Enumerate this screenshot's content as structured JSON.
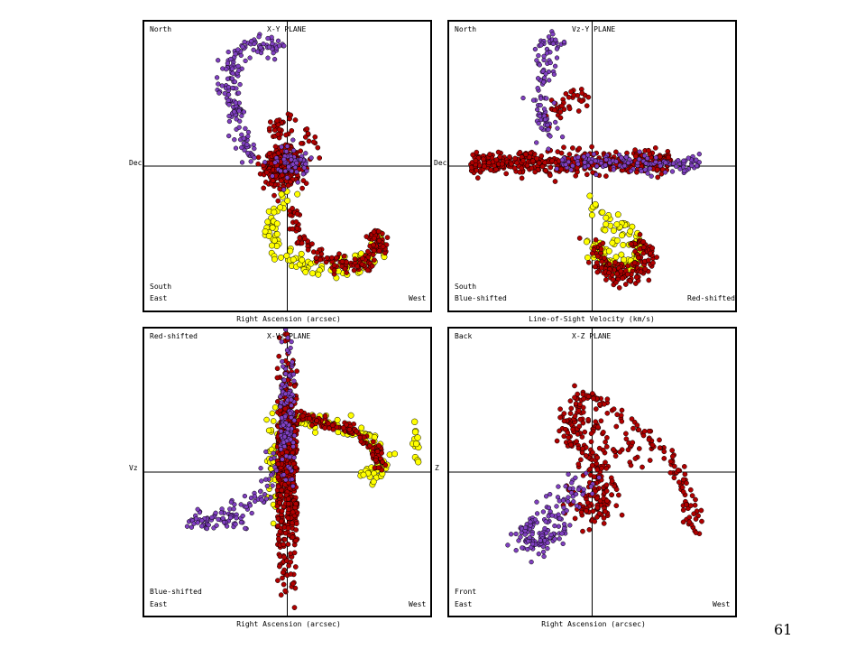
{
  "page_number": "61",
  "colors": {
    "red": "#b00000",
    "purple": "#8040c0",
    "yellow": "#ffff00",
    "outline": "#000000"
  },
  "chart_data": [
    {
      "type": "scatter",
      "title": "X-Y PLANE",
      "xlabel": "Right Ascension (arcsec)",
      "ylabel": "Dec",
      "corner_labels": {
        "top_left": "North",
        "bottom_left_1": "South",
        "bottom_left_2": "East",
        "bottom_right": "West"
      },
      "grid": "axes crosshair only",
      "xlim": [
        -1,
        1
      ],
      "ylim": [
        -1,
        1
      ],
      "series": [
        {
          "color": "yellow",
          "shape": "arm",
          "points": [
            [
              0.0,
              -0.17
            ],
            [
              -0.1,
              -0.3
            ],
            [
              -0.12,
              -0.45
            ],
            [
              -0.05,
              -0.6
            ],
            [
              0.1,
              -0.68
            ],
            [
              0.3,
              -0.72
            ],
            [
              0.5,
              -0.68
            ],
            [
              0.62,
              -0.6
            ],
            [
              0.66,
              -0.5
            ]
          ],
          "spread": 0.035,
          "count": 120,
          "size": 3.2
        },
        {
          "color": "red",
          "shape": "blob",
          "center": [
            -0.03,
            0.0
          ],
          "radius": [
            0.1,
            0.1
          ],
          "count": 420,
          "size": 2.6
        },
        {
          "color": "red",
          "shape": "arm",
          "points": [
            [
              0.02,
              -0.3
            ],
            [
              0.1,
              -0.52
            ],
            [
              0.28,
              -0.65
            ],
            [
              0.5,
              -0.7
            ],
            [
              0.64,
              -0.58
            ],
            [
              0.6,
              -0.45
            ]
          ],
          "spread": 0.03,
          "count": 160,
          "size": 2.6
        },
        {
          "color": "red",
          "shape": "arm",
          "points": [
            [
              -0.12,
              0.15
            ],
            [
              -0.05,
              0.3
            ],
            [
              0.08,
              0.28
            ],
            [
              0.16,
              0.1
            ]
          ],
          "spread": 0.04,
          "count": 40,
          "size": 2.6
        },
        {
          "color": "purple",
          "shape": "arm",
          "points": [
            [
              -0.25,
              0.05
            ],
            [
              -0.35,
              0.3
            ],
            [
              -0.42,
              0.55
            ],
            [
              -0.38,
              0.75
            ],
            [
              -0.22,
              0.85
            ],
            [
              -0.05,
              0.83
            ]
          ],
          "spread": 0.04,
          "count": 170,
          "size": 2.4
        },
        {
          "color": "purple",
          "shape": "blob",
          "center": [
            0.03,
            0.04
          ],
          "radius": [
            0.11,
            0.09
          ],
          "count": 60,
          "size": 2.4
        }
      ]
    },
    {
      "type": "scatter",
      "title": "Vz-Y PLANE",
      "xlabel": "Line-of-Sight Velocity (km/s)",
      "ylabel": "Dec",
      "corner_labels": {
        "top_left": "North",
        "bottom_left_1": "South",
        "bottom_left_2": "Blue-shifted",
        "bottom_right": "Red-shifted"
      },
      "grid": "axes crosshair only",
      "xlim": [
        -1,
        1
      ],
      "ylim": [
        -1,
        1
      ],
      "series": [
        {
          "color": "yellow",
          "shape": "arm",
          "points": [
            [
              0.0,
              -0.2
            ],
            [
              0.1,
              -0.38
            ],
            [
              0.2,
              -0.45
            ],
            [
              0.3,
              -0.5
            ],
            [
              0.32,
              -0.62
            ],
            [
              0.22,
              -0.7
            ],
            [
              0.1,
              -0.65
            ],
            [
              0.0,
              -0.55
            ]
          ],
          "spread": 0.035,
          "count": 110,
          "size": 3.2
        },
        {
          "color": "red",
          "shape": "band",
          "center": [
            -0.15,
            0.02
          ],
          "radius": [
            0.7,
            0.07
          ],
          "count": 430,
          "size": 2.6
        },
        {
          "color": "red",
          "shape": "arm",
          "points": [
            [
              0.0,
              -0.55
            ],
            [
              0.1,
              -0.7
            ],
            [
              0.22,
              -0.78
            ],
            [
              0.35,
              -0.72
            ],
            [
              0.38,
              -0.6
            ],
            [
              0.3,
              -0.5
            ]
          ],
          "spread": 0.035,
          "count": 150,
          "size": 2.6
        },
        {
          "color": "red",
          "shape": "arm",
          "points": [
            [
              -0.28,
              0.35
            ],
            [
              -0.18,
              0.45
            ],
            [
              -0.05,
              0.5
            ]
          ],
          "spread": 0.04,
          "count": 35,
          "size": 2.6
        },
        {
          "color": "purple",
          "shape": "arm",
          "points": [
            [
              -0.3,
              0.15
            ],
            [
              -0.35,
              0.4
            ],
            [
              -0.32,
              0.65
            ],
            [
              -0.3,
              0.85
            ],
            [
              -0.25,
              0.9
            ]
          ],
          "spread": 0.04,
          "count": 100,
          "size": 2.4
        },
        {
          "color": "purple",
          "shape": "band",
          "center": [
            0.25,
            0.02
          ],
          "radius": [
            0.5,
            0.05
          ],
          "count": 130,
          "size": 2.4
        }
      ]
    },
    {
      "type": "scatter",
      "title": "X-Vz PLANE",
      "xlabel": "Right Ascension (arcsec)",
      "ylabel": "Vz",
      "corner_labels": {
        "top_left": "Red-shifted",
        "bottom_left_1": "Blue-shifted",
        "bottom_left_2": "East",
        "bottom_right": "West"
      },
      "grid": "axes crosshair only",
      "xlim": [
        -1,
        1
      ],
      "ylim": [
        -1,
        1
      ],
      "series": [
        {
          "color": "yellow",
          "shape": "arm",
          "points": [
            [
              0.05,
              0.38
            ],
            [
              0.25,
              0.35
            ],
            [
              0.45,
              0.3
            ],
            [
              0.6,
              0.2
            ],
            [
              0.68,
              0.05
            ],
            [
              0.62,
              -0.02
            ],
            [
              0.55,
              0.0
            ]
          ],
          "spread": 0.03,
          "count": 110,
          "size": 3.2
        },
        {
          "color": "yellow",
          "shape": "blob",
          "center": [
            0.9,
            0.2
          ],
          "radius": [
            0.02,
            0.1
          ],
          "count": 14,
          "size": 3.4
        },
        {
          "color": "yellow",
          "shape": "blob",
          "center": [
            -0.1,
            0.15
          ],
          "radius": [
            0.04,
            0.3
          ],
          "count": 40,
          "size": 3.0
        },
        {
          "color": "red",
          "shape": "band",
          "center": [
            0.0,
            0.0
          ],
          "radius": [
            0.07,
            0.65
          ],
          "count": 520,
          "size": 2.6
        },
        {
          "color": "red",
          "shape": "arm",
          "points": [
            [
              0.05,
              0.38
            ],
            [
              0.25,
              0.35
            ],
            [
              0.45,
              0.3
            ],
            [
              0.6,
              0.18
            ],
            [
              0.66,
              0.05
            ]
          ],
          "spread": 0.025,
          "count": 120,
          "size": 2.6
        },
        {
          "color": "purple",
          "shape": "arm",
          "points": [
            [
              -0.05,
              0.1
            ],
            [
              -0.2,
              -0.15
            ],
            [
              -0.35,
              -0.3
            ],
            [
              -0.55,
              -0.35
            ],
            [
              -0.65,
              -0.35
            ]
          ],
          "spread": 0.04,
          "count": 110,
          "size": 2.4
        },
        {
          "color": "purple",
          "shape": "band",
          "center": [
            0.0,
            0.45
          ],
          "radius": [
            0.05,
            0.4
          ],
          "count": 120,
          "size": 2.4
        }
      ]
    },
    {
      "type": "scatter",
      "title": "X-Z PLANE",
      "xlabel": "Right Ascension (arcsec)",
      "ylabel": "Z",
      "corner_labels": {
        "top_left": "Back",
        "bottom_left_1": "Front",
        "bottom_left_2": "East",
        "bottom_right": "West"
      },
      "grid": "axes crosshair only",
      "xlim": [
        -1,
        1
      ],
      "ylim": [
        -1,
        1
      ],
      "series": [
        {
          "color": "red",
          "shape": "arm",
          "points": [
            [
              -0.05,
              0.53
            ],
            [
              0.1,
              0.45
            ],
            [
              0.3,
              0.32
            ],
            [
              0.5,
              0.15
            ],
            [
              0.65,
              -0.05
            ],
            [
              0.68,
              -0.25
            ],
            [
              0.7,
              -0.38
            ]
          ],
          "spread": 0.03,
          "count": 110,
          "size": 2.6
        },
        {
          "color": "red",
          "shape": "arm",
          "points": [
            [
              -0.1,
              0.52
            ],
            [
              -0.15,
              0.35
            ],
            [
              -0.05,
              0.15
            ],
            [
              0.05,
              -0.05
            ],
            [
              0.1,
              -0.2
            ],
            [
              0.0,
              -0.3
            ],
            [
              -0.12,
              -0.2
            ]
          ],
          "spread": 0.05,
          "count": 200,
          "size": 2.6
        },
        {
          "color": "red",
          "shape": "arm",
          "points": [
            [
              -0.2,
              0.25
            ],
            [
              -0.1,
              0.35
            ],
            [
              0.05,
              0.3
            ],
            [
              0.2,
              0.18
            ],
            [
              0.35,
              0.05
            ]
          ],
          "spread": 0.04,
          "count": 60,
          "size": 2.6
        },
        {
          "color": "purple",
          "shape": "arm",
          "points": [
            [
              -0.05,
              -0.05
            ],
            [
              -0.2,
              -0.2
            ],
            [
              -0.4,
              -0.35
            ],
            [
              -0.5,
              -0.45
            ],
            [
              -0.38,
              -0.5
            ],
            [
              -0.25,
              -0.4
            ]
          ],
          "spread": 0.05,
          "count": 160,
          "size": 2.4
        }
      ]
    }
  ]
}
